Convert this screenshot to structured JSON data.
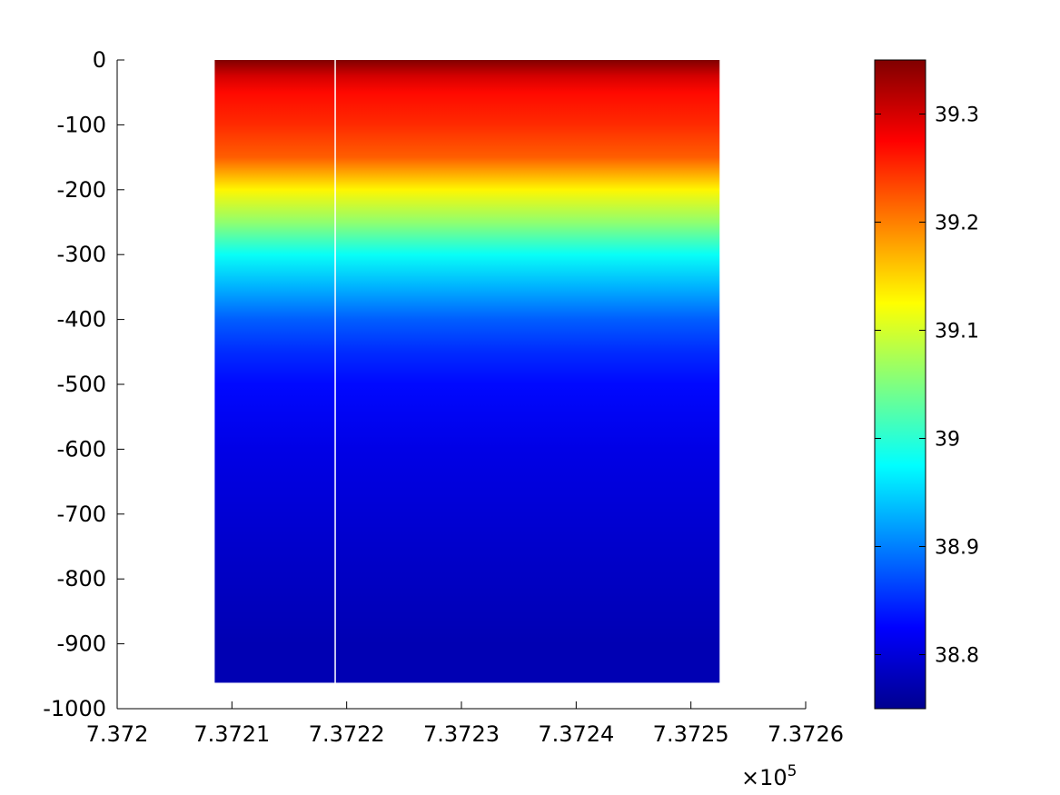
{
  "chart_data": {
    "type": "heatmap",
    "title": "",
    "xlabel": "",
    "ylabel": "",
    "x_exponent_label": "×10",
    "x_exponent_power": "5",
    "xlim": [
      737200,
      737260
    ],
    "ylim": [
      -1000,
      0
    ],
    "x_ticks": [
      737200,
      737210,
      737220,
      737230,
      737240,
      737250,
      737260
    ],
    "x_tick_labels": [
      "7.372",
      "7.3721",
      "7.3722",
      "7.3723",
      "7.3724",
      "7.3725",
      "7.3726"
    ],
    "y_ticks": [
      0,
      -100,
      -200,
      -300,
      -400,
      -500,
      -600,
      -700,
      -800,
      -900,
      -1000
    ],
    "y_tick_labels": [
      "0",
      "-100",
      "-200",
      "-300",
      "-400",
      "-500",
      "-600",
      "-700",
      "-800",
      "-900",
      "-1000"
    ],
    "data_x_range": [
      737208.5,
      737252.5
    ],
    "data_depth_range": [
      -960,
      0
    ],
    "gap_x": [
      737219.0
    ],
    "grid": false,
    "colormap": "jet",
    "colorbar": {
      "range": [
        38.75,
        39.35
      ],
      "ticks": [
        38.8,
        38.9,
        39,
        39.1,
        39.2,
        39.3
      ],
      "tick_labels": [
        "38.8",
        "38.9",
        "39",
        "39.1",
        "39.2",
        "39.3"
      ]
    },
    "mean_profile": {
      "depth": [
        0,
        -25,
        -50,
        -100,
        -150,
        -200,
        -250,
        -300,
        -350,
        -400,
        -450,
        -500,
        -600,
        -700,
        -800,
        -900,
        -960
      ],
      "value": [
        39.35,
        39.3,
        39.27,
        39.25,
        39.22,
        39.13,
        39.06,
        38.98,
        38.93,
        38.88,
        38.85,
        38.83,
        38.81,
        38.8,
        38.79,
        38.78,
        38.78
      ]
    }
  }
}
